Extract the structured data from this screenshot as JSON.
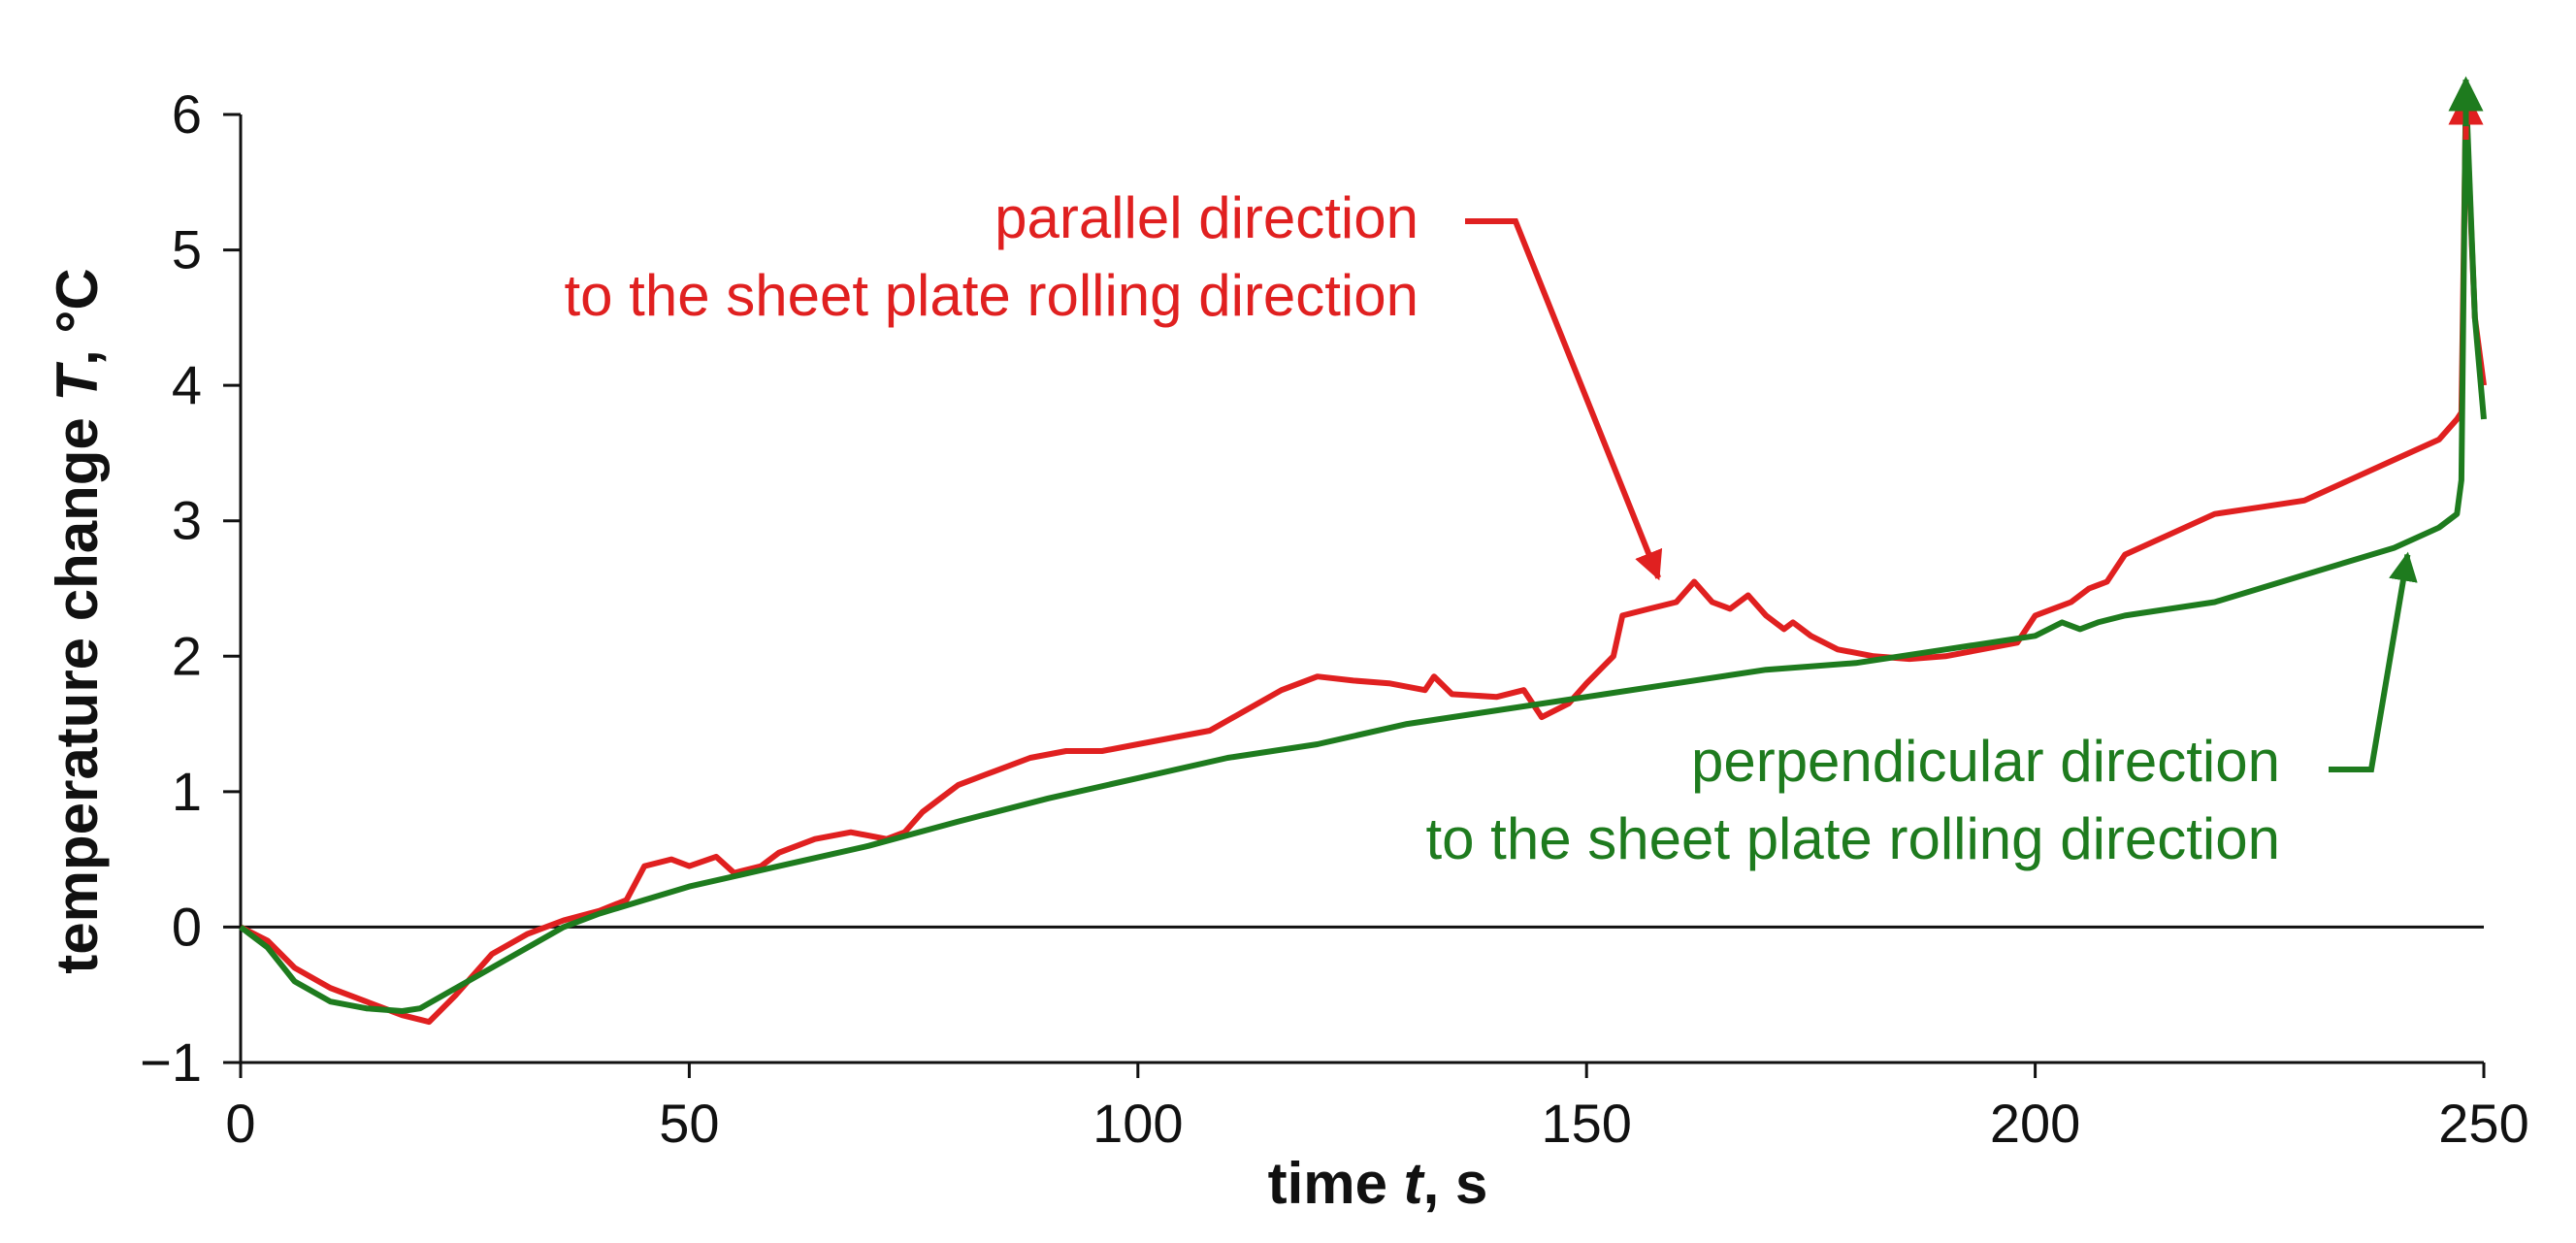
{
  "chart_data": {
    "type": "line",
    "title": "",
    "xlabel": {
      "prefix": "time ",
      "var": "t",
      "suffix": ", s"
    },
    "ylabel": {
      "prefix": "temperature change ",
      "var": "T",
      "suffix": ", °C"
    },
    "xlim": [
      0,
      250
    ],
    "ylim": [
      -1,
      6
    ],
    "xticks": [
      0,
      50,
      100,
      150,
      200,
      250
    ],
    "yticks": [
      -1,
      0,
      1,
      2,
      3,
      4,
      5,
      6
    ],
    "ytick_labels": [
      "−1",
      "0",
      "1",
      "2",
      "3",
      "4",
      "5",
      "6"
    ],
    "grid": false,
    "zero_line": true,
    "series": [
      {
        "name": "parallel direction to the sheet plate rolling direction",
        "color": "#e02020",
        "x": [
          0,
          3,
          6,
          10,
          14,
          18,
          21,
          24,
          28,
          32,
          36,
          40,
          43,
          45,
          48,
          50,
          53,
          55,
          58,
          60,
          64,
          68,
          72,
          74,
          76,
          78,
          80,
          84,
          88,
          92,
          96,
          100,
          104,
          108,
          112,
          116,
          120,
          124,
          128,
          132,
          133,
          135,
          140,
          143,
          145,
          148,
          150,
          153,
          154,
          157,
          160,
          162,
          164,
          166,
          168,
          170,
          172,
          173,
          175,
          178,
          182,
          186,
          190,
          194,
          198,
          200,
          202,
          204,
          206,
          208,
          210,
          215,
          220,
          225,
          230,
          235,
          240,
          245,
          247,
          247.5,
          248,
          249,
          250
        ],
        "y": [
          0,
          -0.1,
          -0.3,
          -0.45,
          -0.55,
          -0.65,
          -0.7,
          -0.5,
          -0.2,
          -0.05,
          0.05,
          0.12,
          0.2,
          0.45,
          0.5,
          0.45,
          0.52,
          0.4,
          0.45,
          0.55,
          0.65,
          0.7,
          0.65,
          0.7,
          0.85,
          0.95,
          1.05,
          1.15,
          1.25,
          1.3,
          1.3,
          1.35,
          1.4,
          1.45,
          1.6,
          1.75,
          1.85,
          1.82,
          1.8,
          1.75,
          1.85,
          1.72,
          1.7,
          1.75,
          1.55,
          1.65,
          1.8,
          2.0,
          2.3,
          2.35,
          2.4,
          2.55,
          2.4,
          2.35,
          2.45,
          2.3,
          2.2,
          2.25,
          2.15,
          2.05,
          2.0,
          1.98,
          2.0,
          2.05,
          2.1,
          2.3,
          2.35,
          2.4,
          2.5,
          2.55,
          2.75,
          2.9,
          3.05,
          3.1,
          3.15,
          3.3,
          3.45,
          3.6,
          3.75,
          3.8,
          6.1,
          4.5,
          4.0
        ]
      },
      {
        "name": "perpendicular direction to the sheet plate rolling direction",
        "color": "#1e7b1e",
        "x": [
          0,
          3,
          6,
          10,
          14,
          18,
          20,
          24,
          28,
          32,
          36,
          40,
          45,
          50,
          60,
          70,
          80,
          90,
          100,
          110,
          120,
          130,
          140,
          150,
          160,
          170,
          180,
          190,
          200,
          203,
          205,
          207,
          210,
          220,
          230,
          240,
          245,
          247,
          247.5,
          248,
          249,
          250
        ],
        "y": [
          0,
          -0.15,
          -0.4,
          -0.55,
          -0.6,
          -0.62,
          -0.6,
          -0.45,
          -0.3,
          -0.15,
          0,
          0.1,
          0.2,
          0.3,
          0.45,
          0.6,
          0.78,
          0.95,
          1.1,
          1.25,
          1.35,
          1.5,
          1.6,
          1.7,
          1.8,
          1.9,
          1.95,
          2.05,
          2.15,
          2.25,
          2.2,
          2.25,
          2.3,
          2.4,
          2.6,
          2.8,
          2.95,
          3.05,
          3.3,
          6.2,
          4.5,
          3.75
        ]
      }
    ],
    "annotations": [
      {
        "id": "parallel",
        "lines": [
          "parallel direction",
          "to the sheet plate rolling direction"
        ],
        "color": "#e02020",
        "points_to": [
          158,
          2.45
        ]
      },
      {
        "id": "perpendicular",
        "lines": [
          "perpendicular direction",
          "to the sheet plate rolling direction"
        ],
        "color": "#1e7b1e",
        "points_to": [
          241.5,
          2.85
        ]
      }
    ]
  }
}
